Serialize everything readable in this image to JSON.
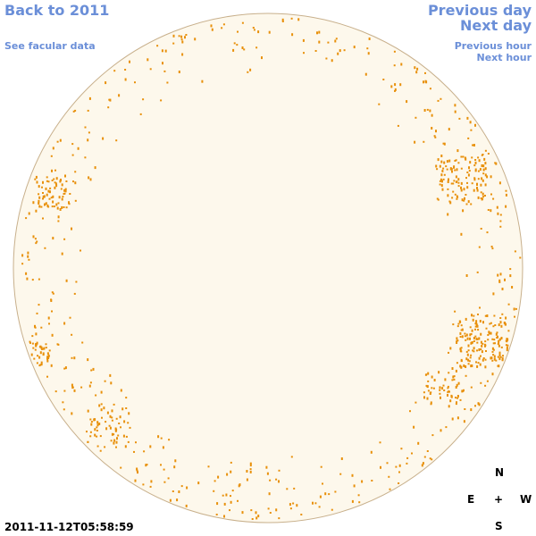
{
  "nav": {
    "back": "Back to 2011",
    "facular": "See facular data",
    "previous_day": "Previous day",
    "next_day": "Next day",
    "previous_hour": "Previous hour",
    "next_hour": "Next hour"
  },
  "compass": {
    "north": "N",
    "east": "E",
    "center": "+",
    "west": "W",
    "south": "S"
  },
  "timestamp": "2011-11-12T05:58:59"
}
